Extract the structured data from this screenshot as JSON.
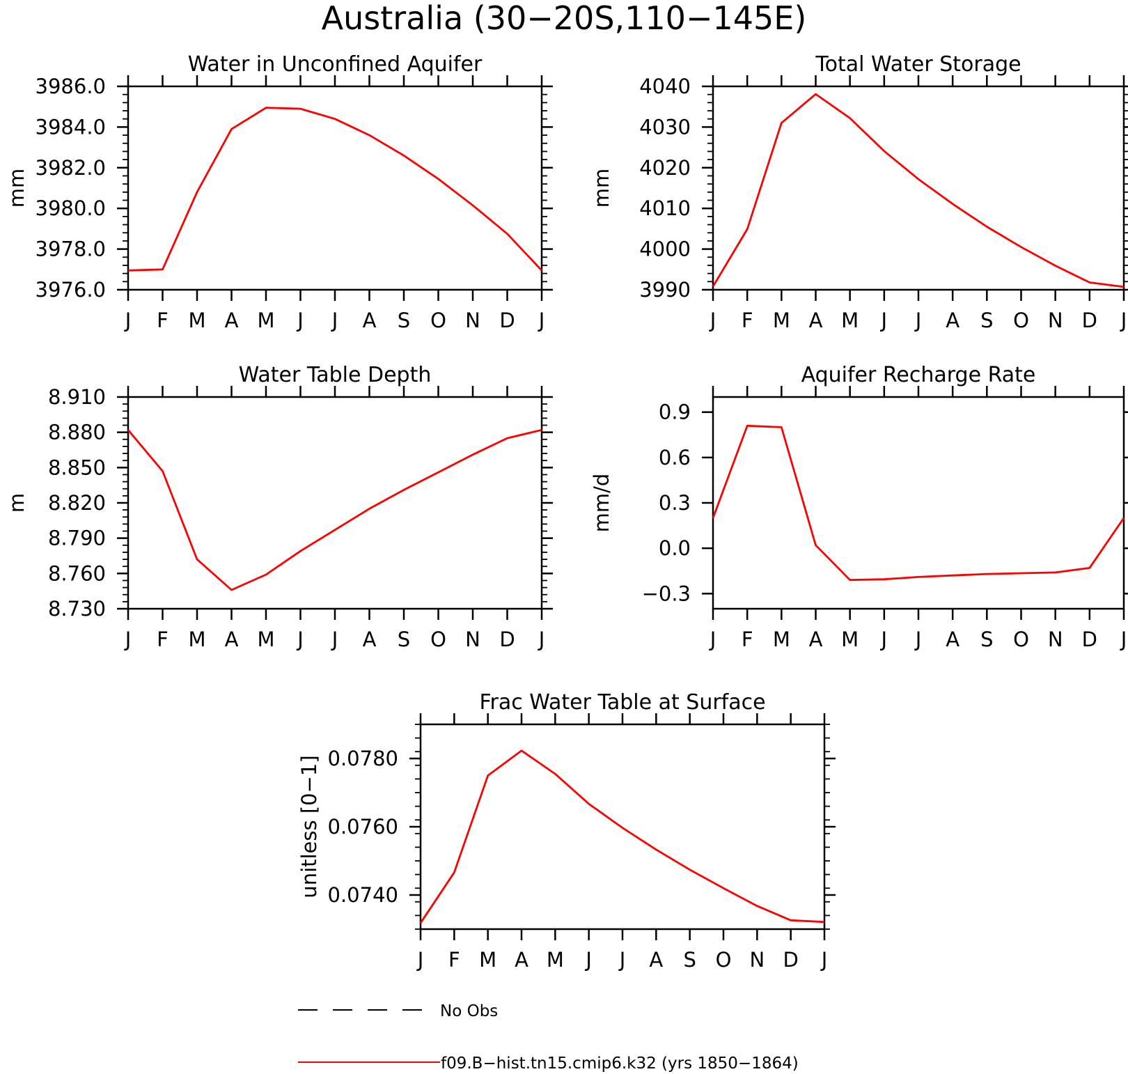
{
  "figure": {
    "title": "Australia (30−20S,110−145E)",
    "month_labels": [
      "J",
      "F",
      "M",
      "A",
      "M",
      "J",
      "J",
      "A",
      "S",
      "O",
      "N",
      "D",
      "J"
    ]
  },
  "legend": {
    "obs_label": "No Obs",
    "model_label": "f09.B−hist.tn15.cmip6.k32 (yrs 1850−1864)",
    "model_color": "#ff0000",
    "obs_color": "#000000"
  },
  "chart_data": [
    {
      "type": "line",
      "title": "Water in Unconfined Aquifer",
      "ylabel": "mm",
      "ylim": [
        3976.0,
        3986.0
      ],
      "y_major_ticks": [
        3976.0,
        3978.0,
        3980.0,
        3982.0,
        3984.0,
        3986.0
      ],
      "y_tick_labels": [
        "3976.0",
        "3978.0",
        "3980.0",
        "3982.0",
        "3984.0",
        "3986.0"
      ],
      "y_minor_step": 0.4,
      "x": [
        "J",
        "F",
        "M",
        "A",
        "M",
        "J",
        "J",
        "A",
        "S",
        "O",
        "N",
        "D",
        "J"
      ],
      "series": [
        {
          "name": "f09.B−hist.tn15.cmip6.k32 (yrs 1850−1864)",
          "color": "#ff0000",
          "values": [
            3976.95,
            3977.0,
            3980.8,
            3983.9,
            3984.95,
            3984.9,
            3984.4,
            3983.6,
            3982.6,
            3981.45,
            3980.15,
            3978.75,
            3976.95
          ]
        }
      ]
    },
    {
      "type": "line",
      "title": "Total Water Storage",
      "ylabel": "mm",
      "ylim": [
        3990,
        4040
      ],
      "y_major_ticks": [
        3990,
        4000,
        4010,
        4020,
        4030,
        4040
      ],
      "y_tick_labels": [
        "3990",
        "4000",
        "4010",
        "4020",
        "4030",
        "4040"
      ],
      "y_minor_step": 2,
      "x": [
        "J",
        "F",
        "M",
        "A",
        "M",
        "J",
        "J",
        "A",
        "S",
        "O",
        "N",
        "D",
        "J"
      ],
      "series": [
        {
          "name": "f09.B−hist.tn15.cmip6.k32 (yrs 1850−1864)",
          "color": "#ff0000",
          "values": [
            3990.8,
            4004.9,
            4031.0,
            4038.1,
            4032.2,
            4024.1,
            4017.2,
            4011.1,
            4005.5,
            4000.5,
            3995.9,
            3991.8,
            3990.7
          ]
        }
      ]
    },
    {
      "type": "line",
      "title": "Water Table Depth",
      "ylabel": "m",
      "ylim": [
        8.73,
        8.91
      ],
      "y_major_ticks": [
        8.73,
        8.76,
        8.79,
        8.82,
        8.85,
        8.88,
        8.91
      ],
      "y_tick_labels": [
        "8.730",
        "8.760",
        "8.790",
        "8.820",
        "8.850",
        "8.880",
        "8.910"
      ],
      "y_minor_step": 0.006,
      "x": [
        "J",
        "F",
        "M",
        "A",
        "M",
        "J",
        "J",
        "A",
        "S",
        "O",
        "N",
        "D",
        "J"
      ],
      "series": [
        {
          "name": "f09.B−hist.tn15.cmip6.k32 (yrs 1850−1864)",
          "color": "#ff0000",
          "values": [
            8.882,
            8.847,
            8.772,
            8.746,
            8.759,
            8.779,
            8.797,
            8.815,
            8.831,
            8.846,
            8.861,
            8.875,
            8.882
          ]
        }
      ]
    },
    {
      "type": "line",
      "title": "Aquifer Recharge Rate",
      "ylabel": "mm/d",
      "ylim": [
        -0.4,
        1.0
      ],
      "y_major_ticks": [
        -0.3,
        0.0,
        0.3,
        0.6,
        0.9
      ],
      "y_tick_labels": [
        "−0.3",
        "0.0",
        "0.3",
        "0.6",
        "0.9"
      ],
      "y_minor_step": null,
      "x": [
        "J",
        "F",
        "M",
        "A",
        "M",
        "J",
        "J",
        "A",
        "S",
        "O",
        "N",
        "D",
        "J"
      ],
      "series": [
        {
          "name": "f09.B−hist.tn15.cmip6.k32 (yrs 1850−1864)",
          "color": "#ff0000",
          "values": [
            0.2,
            0.81,
            0.8,
            0.02,
            -0.21,
            -0.205,
            -0.19,
            -0.18,
            -0.17,
            -0.165,
            -0.16,
            -0.13,
            0.2
          ]
        }
      ]
    },
    {
      "type": "line",
      "title": "Frac Water Table at Surface",
      "ylabel": "unitless [0−1]",
      "ylim": [
        0.073,
        0.079
      ],
      "y_major_ticks": [
        0.074,
        0.076,
        0.078
      ],
      "y_tick_labels": [
        "0.0740",
        "0.0760",
        "0.0780"
      ],
      "y_minor_step": 0.0004,
      "x": [
        "J",
        "F",
        "M",
        "A",
        "M",
        "J",
        "J",
        "A",
        "S",
        "O",
        "N",
        "D",
        "J"
      ],
      "series": [
        {
          "name": "f09.B−hist.tn15.cmip6.k32 (yrs 1850−1864)",
          "color": "#ff0000",
          "values": [
            0.07318,
            0.07466,
            0.0775,
            0.07823,
            0.07755,
            0.07667,
            0.07597,
            0.07533,
            0.07474,
            0.0742,
            0.07368,
            0.07326,
            0.07321
          ]
        }
      ]
    }
  ]
}
